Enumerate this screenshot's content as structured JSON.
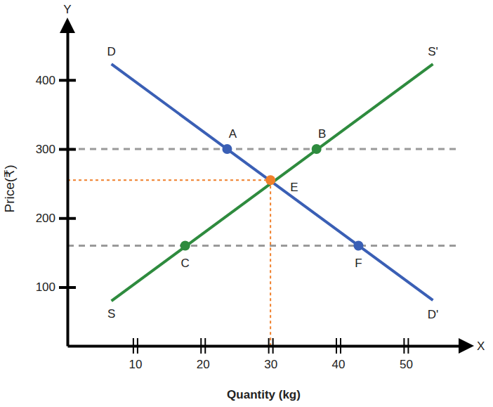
{
  "chart_data": {
    "type": "line",
    "x_label": "Quantity (kg)",
    "y_label": "Price(₹)",
    "x_axis_name": "X",
    "y_axis_name": "Y",
    "xlim": [
      0,
      58
    ],
    "ylim": [
      15,
      470
    ],
    "xticks": [
      10,
      20,
      30,
      40,
      50
    ],
    "yticks": [
      100,
      200,
      300,
      400
    ],
    "grid": false,
    "series": [
      {
        "start_label": "D",
        "end_label": "D'",
        "color": "#3a5fb5",
        "x": [
          6.5,
          54
        ],
        "values": [
          423,
          81
        ]
      },
      {
        "start_label": "S",
        "end_label": "S'",
        "color": "#2e8b3e",
        "x": [
          6.5,
          54
        ],
        "values": [
          80,
          423
        ]
      }
    ],
    "price_lines": [
      300,
      160
    ],
    "points": [
      {
        "label": "A",
        "x": 23.6,
        "y": 300,
        "color": "#3a5fb5"
      },
      {
        "label": "B",
        "x": 36.8,
        "y": 300,
        "color": "#2e8b3e"
      },
      {
        "label": "C",
        "x": 17.4,
        "y": 160,
        "color": "#2e8b3e"
      },
      {
        "label": "F",
        "x": 43,
        "y": 160,
        "color": "#3a5fb5"
      }
    ],
    "equilibrium": {
      "label": "E",
      "x": 30,
      "y": 255,
      "color": "#f07f2a"
    }
  }
}
